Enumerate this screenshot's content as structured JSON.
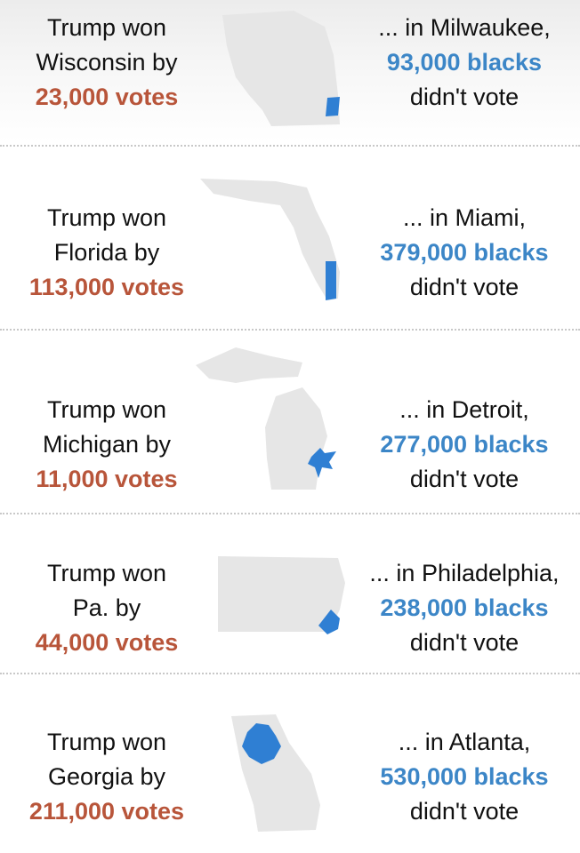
{
  "rows": [
    {
      "state": "Wisconsin",
      "left": {
        "line1": "Trump won",
        "line2": "Wisconsin by",
        "margin": "23,000 votes"
      },
      "right": {
        "city": "... in Milwaukee,",
        "count": "93,000 blacks",
        "tail": "didn't vote"
      },
      "icons": {
        "state": "wisconsin-map-icon",
        "city": "milwaukee-highlight-icon"
      }
    },
    {
      "state": "Florida",
      "left": {
        "line1": "Trump won",
        "line2": "Florida by",
        "margin": "113,000 votes"
      },
      "right": {
        "city": "... in Miami,",
        "count": "379,000 blacks",
        "tail": "didn't vote"
      },
      "icons": {
        "state": "florida-map-icon",
        "city": "miami-highlight-icon"
      }
    },
    {
      "state": "Michigan",
      "left": {
        "line1": "Trump won",
        "line2": "Michigan by",
        "margin": "11,000 votes"
      },
      "right": {
        "city": "... in Detroit,",
        "count": "277,000 blacks",
        "tail": "didn't vote"
      },
      "icons": {
        "state": "michigan-map-icon",
        "city": "detroit-highlight-icon"
      }
    },
    {
      "state": "Pennsylvania",
      "left": {
        "line1": "Trump won",
        "line2": "Pa. by",
        "margin": "44,000 votes"
      },
      "right": {
        "city": "... in Philadelphia,",
        "count": "238,000 blacks",
        "tail": "didn't vote"
      },
      "icons": {
        "state": "pennsylvania-map-icon",
        "city": "philadelphia-highlight-icon"
      }
    },
    {
      "state": "Georgia",
      "left": {
        "line1": "Trump won",
        "line2": "Georgia by",
        "margin": "211,000 votes"
      },
      "right": {
        "city": "... in Atlanta,",
        "count": "530,000 blacks",
        "tail": "didn't vote"
      },
      "icons": {
        "state": "georgia-map-icon",
        "city": "atlanta-highlight-icon"
      }
    }
  ],
  "colors": {
    "margin_text": "#b8553a",
    "count_text": "#3c86c7",
    "state_fill": "#e6e6e6",
    "city_fill": "#2f7fd3",
    "divider": "#c8c8c8"
  }
}
